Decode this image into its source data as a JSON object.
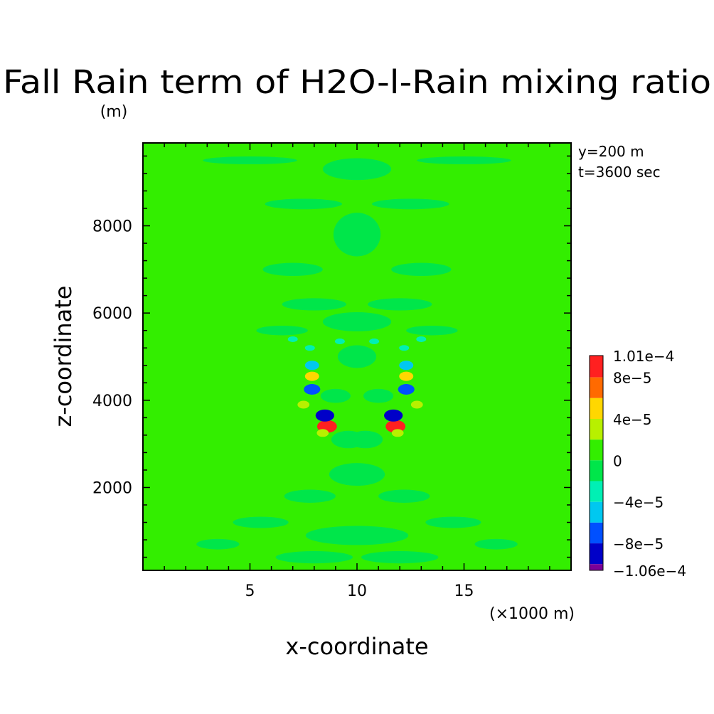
{
  "chart_data": {
    "type": "heatmap",
    "title": "Fall Rain term of H2O-l-Rain mixing ratio",
    "y_unit": "(m)",
    "x_unit": "(×1000 m)",
    "xlabel": "x-coordinate",
    "ylabel": "z-coordinate",
    "annotations": [
      "y=200 m",
      "t=3600 sec"
    ],
    "xlim": [
      0,
      20
    ],
    "ylim": [
      100,
      9900
    ],
    "x_ticks": [
      5,
      10,
      15
    ],
    "y_ticks": [
      2000,
      4000,
      6000,
      8000
    ],
    "x_tick_labels": [
      "5",
      "10",
      "15"
    ],
    "y_tick_labels": [
      "2000",
      "4000",
      "6000",
      "8000"
    ],
    "colorbar": {
      "max_label": "1.01e-4",
      "min_label": "-1.06e-4",
      "labels": [
        {
          "value": 0.000101,
          "text": "1.01e-4"
        },
        {
          "value": 8e-05,
          "text": "8e-5"
        },
        {
          "value": 4e-05,
          "text": "4e-5"
        },
        {
          "value": 0,
          "text": "0"
        },
        {
          "value": -4e-05,
          "text": "-4e-5"
        },
        {
          "value": -8e-05,
          "text": "-8e-5"
        },
        {
          "value": -0.000106,
          "text": "-1.06e-4"
        }
      ],
      "levels": [
        {
          "lo": 8e-05,
          "hi": 0.000101,
          "color": "#ff2020"
        },
        {
          "lo": 6e-05,
          "hi": 8e-05,
          "color": "#ff6a00"
        },
        {
          "lo": 4e-05,
          "hi": 6e-05,
          "color": "#ffd700"
        },
        {
          "lo": 2e-05,
          "hi": 4e-05,
          "color": "#b8f000"
        },
        {
          "lo": 0,
          "hi": 2e-05,
          "color": "#33ee00"
        },
        {
          "lo": -2e-05,
          "hi": 0,
          "color": "#00e64a"
        },
        {
          "lo": -4e-05,
          "hi": -2e-05,
          "color": "#00f0b4"
        },
        {
          "lo": -6e-05,
          "hi": -4e-05,
          "color": "#00c8f0"
        },
        {
          "lo": -8e-05,
          "hi": -6e-05,
          "color": "#0050ff"
        },
        {
          "lo": -0.0001,
          "hi": -8e-05,
          "color": "#0000c8"
        },
        {
          "lo": -0.000106,
          "hi": -0.0001,
          "color": "#7a0099"
        }
      ]
    },
    "background_color": "#33ee00",
    "features": [
      {
        "x": 8.6,
        "z": 3400,
        "value": 0.0001,
        "color": "#ff2020"
      },
      {
        "x": 11.8,
        "z": 3400,
        "value": 0.0001,
        "color": "#ff2020"
      },
      {
        "x": 8.5,
        "z": 3650,
        "value": -9e-05,
        "color": "#0000c8"
      },
      {
        "x": 11.7,
        "z": 3650,
        "value": -9e-05,
        "color": "#0000c8"
      },
      {
        "x": 7.9,
        "z": 4250,
        "value": -7e-05,
        "color": "#0050ff"
      },
      {
        "x": 12.3,
        "z": 4250,
        "value": -7e-05,
        "color": "#0050ff"
      },
      {
        "x": 7.9,
        "z": 4800,
        "value": -5e-05,
        "color": "#00c8f0"
      },
      {
        "x": 12.3,
        "z": 4800,
        "value": -5e-05,
        "color": "#00c8f0"
      },
      {
        "x": 7.9,
        "z": 4550,
        "value": 5e-05,
        "color": "#ffd700"
      },
      {
        "x": 12.3,
        "z": 4550,
        "value": 5e-05,
        "color": "#ffd700"
      },
      {
        "x": 7.5,
        "z": 3900,
        "value": 3e-05,
        "color": "#b8f000"
      },
      {
        "x": 12.8,
        "z": 3900,
        "value": 3e-05,
        "color": "#b8f000"
      },
      {
        "x": 8.4,
        "z": 3250,
        "value": 3e-05,
        "color": "#b8f000"
      },
      {
        "x": 11.9,
        "z": 3250,
        "value": 3e-05,
        "color": "#b8f000"
      }
    ]
  }
}
